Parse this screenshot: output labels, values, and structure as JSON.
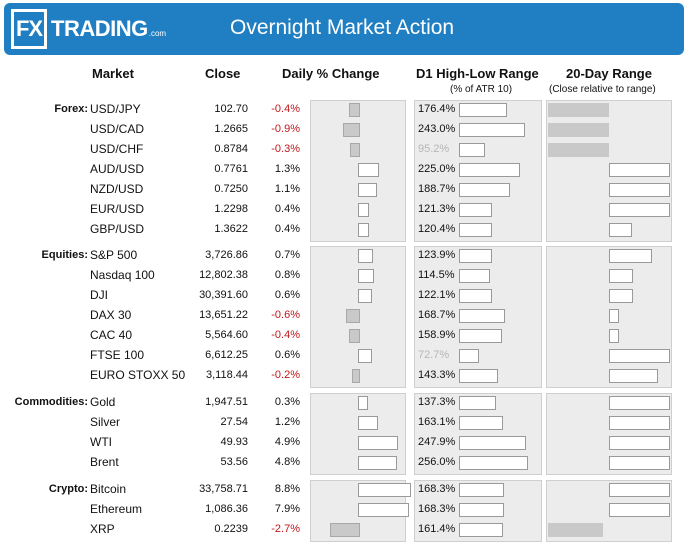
{
  "header": {
    "logo_mark": "FX",
    "logo_text": "TRADING",
    "logo_suffix": ".com",
    "title": "Overnight Market Action"
  },
  "columns": {
    "market": "Market",
    "close": "Close",
    "daily_change": "Daily % Change",
    "range": "D1 High-Low Range",
    "range_sub": "(% of ATR 10)",
    "twenty_day": "20-Day Range",
    "twenty_day_sub": "(Close relative to range)"
  },
  "chart_data": {
    "type": "table",
    "title": "Overnight Market Action",
    "groups": [
      {
        "label": "Forex:",
        "rows": [
          {
            "market": "USD/JPY",
            "close": "102.70",
            "change": -0.4,
            "change_label": "-0.4%",
            "atr": 176.4,
            "atr_label": "176.4%",
            "atr_dim": false,
            "pos20": 0.0
          },
          {
            "market": "USD/CAD",
            "close": "1.2665",
            "change": -0.9,
            "change_label": "-0.9%",
            "atr": 243.0,
            "atr_label": "243.0%",
            "atr_dim": false,
            "pos20": 0.0
          },
          {
            "market": "USD/CHF",
            "close": "0.8784",
            "change": -0.3,
            "change_label": "-0.3%",
            "atr": 95.2,
            "atr_label": "95.2%",
            "atr_dim": true,
            "pos20": 0.0
          },
          {
            "market": "AUD/USD",
            "close": "0.7761",
            "change": 1.3,
            "change_label": "1.3%",
            "atr": 225.0,
            "atr_label": "225.0%",
            "atr_dim": false,
            "pos20": 1.0
          },
          {
            "market": "NZD/USD",
            "close": "0.7250",
            "change": 1.1,
            "change_label": "1.1%",
            "atr": 188.7,
            "atr_label": "188.7%",
            "atr_dim": false,
            "pos20": 1.0
          },
          {
            "market": "EUR/USD",
            "close": "1.2298",
            "change": 0.4,
            "change_label": "0.4%",
            "atr": 121.3,
            "atr_label": "121.3%",
            "atr_dim": false,
            "pos20": 1.0
          },
          {
            "market": "GBP/USD",
            "close": "1.3622",
            "change": 0.4,
            "change_label": "0.4%",
            "atr": 120.4,
            "atr_label": "120.4%",
            "atr_dim": false,
            "pos20": 0.69
          }
        ]
      },
      {
        "label": "Equities:",
        "rows": [
          {
            "market": "S&P 500",
            "close": "3,726.86",
            "change": 0.7,
            "change_label": "0.7%",
            "atr": 123.9,
            "atr_label": "123.9%",
            "atr_dim": false,
            "pos20": 0.15
          },
          {
            "market": "Nasdaq 100",
            "close": "12,802.38",
            "change": 0.8,
            "change_label": "0.8%",
            "atr": 114.5,
            "atr_label": "114.5%",
            "atr_dim": false,
            "pos20": 0.3
          },
          {
            "market": "DJI",
            "close": "30,391.60",
            "change": 0.6,
            "change_label": "0.6%",
            "atr": 122.1,
            "atr_label": "122.1%",
            "atr_dim": false,
            "pos20": 0.3
          },
          {
            "market": "DAX 30",
            "close": "13,651.22",
            "change": -0.6,
            "change_label": "-0.6%",
            "atr": 168.7,
            "atr_label": "168.7%",
            "atr_dim": false,
            "pos20": 0.53
          },
          {
            "market": "CAC 40",
            "close": "5,564.60",
            "change": -0.4,
            "change_label": "-0.4%",
            "atr": 158.9,
            "atr_label": "158.9%",
            "atr_dim": false,
            "pos20": 0.53
          },
          {
            "market": "FTSE 100",
            "close": "6,612.25",
            "change": 0.6,
            "change_label": "0.6%",
            "atr": 72.7,
            "atr_label": "72.7%",
            "atr_dim": true,
            "pos20": 1.0
          },
          {
            "market": "EURO STOXX 50",
            "close": "3,118.44",
            "change": -0.2,
            "change_label": "-0.2%",
            "atr": 143.3,
            "atr_label": "143.3%",
            "atr_dim": false,
            "pos20": 0.9
          }
        ]
      },
      {
        "label": "Commodities:",
        "rows": [
          {
            "market": "Gold",
            "close": "1,947.51",
            "change": 0.3,
            "change_label": "0.3%",
            "atr": 137.3,
            "atr_label": "137.3%",
            "atr_dim": false,
            "pos20": 1.0
          },
          {
            "market": "Silver",
            "close": "27.54",
            "change": 1.2,
            "change_label": "1.2%",
            "atr": 163.1,
            "atr_label": "163.1%",
            "atr_dim": false,
            "pos20": 1.0
          },
          {
            "market": "WTI",
            "close": "49.93",
            "change": 4.9,
            "change_label": "4.9%",
            "atr": 247.9,
            "atr_label": "247.9%",
            "atr_dim": false,
            "pos20": 1.0
          },
          {
            "market": "Brent",
            "close": "53.56",
            "change": 4.8,
            "change_label": "4.8%",
            "atr": 256.0,
            "atr_label": "256.0%",
            "atr_dim": false,
            "pos20": 1.0
          }
        ]
      },
      {
        "label": "Crypto:",
        "rows": [
          {
            "market": "Bitcoin",
            "close": "33,758.71",
            "change": 8.8,
            "change_label": "8.8%",
            "atr": 168.3,
            "atr_label": "168.3%",
            "atr_dim": false,
            "pos20": 1.0
          },
          {
            "market": "Ethereum",
            "close": "1,086.36",
            "change": 7.9,
            "change_label": "7.9%",
            "atr": 168.3,
            "atr_label": "168.3%",
            "atr_dim": false,
            "pos20": 1.0
          },
          {
            "market": "XRP",
            "close": "0.2239",
            "change": -2.7,
            "change_label": "-2.7%",
            "atr": 161.4,
            "atr_label": "161.4%",
            "atr_dim": false,
            "pos20": 0.05
          }
        ]
      }
    ]
  }
}
